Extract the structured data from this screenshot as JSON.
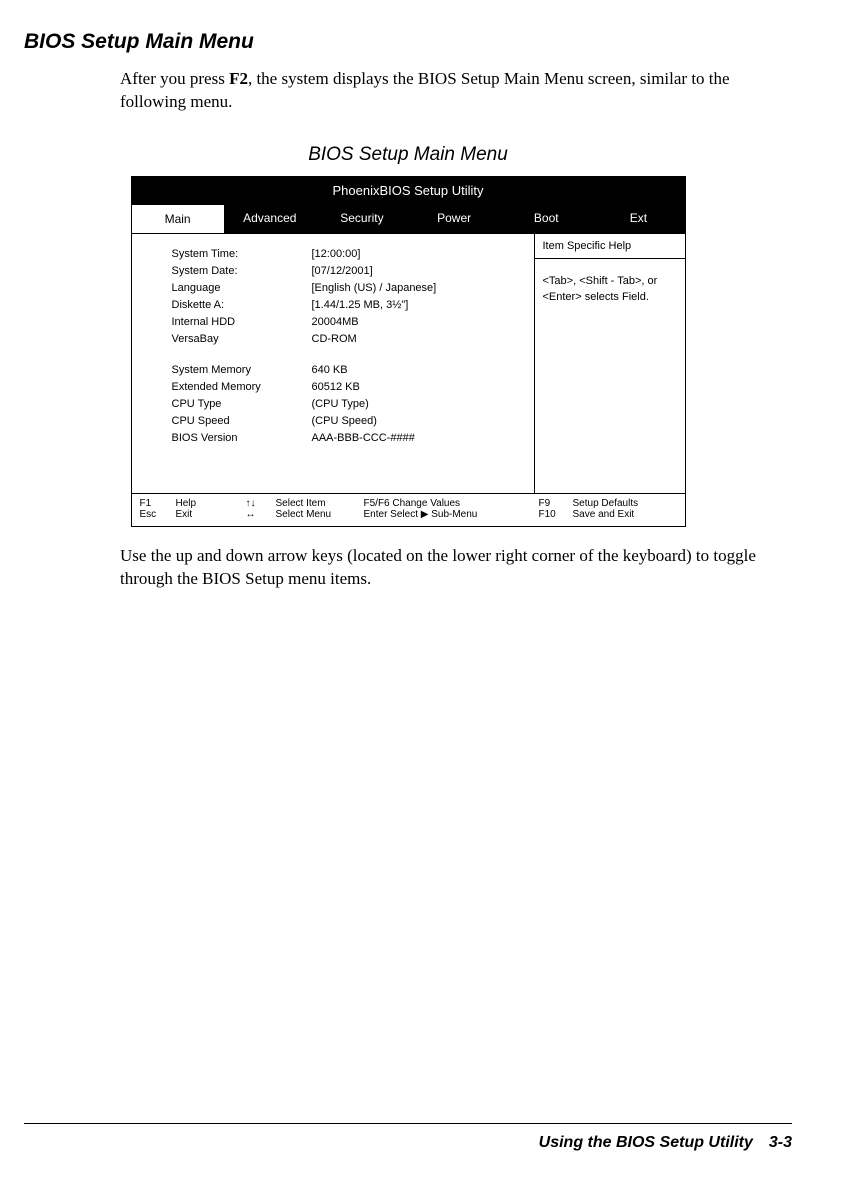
{
  "headings": {
    "section": "BIOS Setup Main Menu",
    "figure_caption": "BIOS Setup Main Menu"
  },
  "paragraphs": {
    "intro_pre": "After you press ",
    "intro_key": "F2",
    "intro_post": ", the system displays the BIOS Setup Main Menu screen, similar to the following menu.",
    "outro": "Use the up and down arrow keys (located on the lower right corner of the keyboard) to toggle through the BIOS Setup menu items."
  },
  "bios": {
    "title": "PhoenixBIOS Setup Utility",
    "tabs": [
      "Main",
      "Advanced",
      "Security",
      "Power",
      "Boot",
      "Ext"
    ],
    "active_tab": "Main",
    "rows_group1": [
      {
        "label": "System Time:",
        "value": "[12:00:00]"
      },
      {
        "label": "System Date:",
        "value": "[07/12/2001]"
      },
      {
        "label": "Language",
        "value": "[English (US) / Japanese]"
      },
      {
        "label": "Diskette A:",
        "value": "[1.44/1.25 MB, 3½\"]"
      },
      {
        "label": "Internal HDD",
        "value": "20004MB"
      },
      {
        "label": "VersaBay",
        "value": "CD-ROM"
      }
    ],
    "rows_group2": [
      {
        "label": "System Memory",
        "value": "640 KB"
      },
      {
        "label": "Extended Memory",
        "value": "60512 KB"
      },
      {
        "label": "CPU Type",
        "value": "(CPU Type)"
      },
      {
        "label": "CPU Speed",
        "value": "(CPU Speed)"
      },
      {
        "label": "BIOS Version",
        "value": "AAA-BBB-CCC-####"
      }
    ],
    "help": {
      "header": "Item Specific Help",
      "body": "<Tab>, <Shift - Tab>, or <Enter> selects Field."
    },
    "footer": {
      "k1": [
        "F1",
        "Esc"
      ],
      "l1": [
        "Help",
        "Exit"
      ],
      "k2": [
        "↑↓",
        "↔"
      ],
      "l2": [
        "Select Item",
        "Select Menu"
      ],
      "l3": [
        "F5/F6 Change Values",
        "Enter Select ▶ Sub-Menu"
      ],
      "k3": [
        "F9",
        "F10"
      ],
      "l4": [
        "Setup Defaults",
        "Save and Exit"
      ]
    }
  },
  "page_footer": {
    "book": "Using the BIOS Setup Utility",
    "page": "3-3"
  }
}
